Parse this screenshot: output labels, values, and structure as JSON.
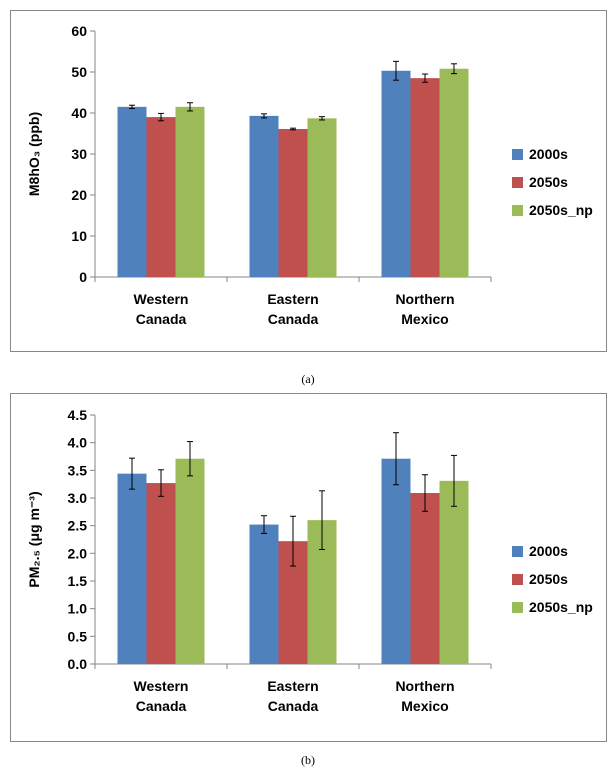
{
  "chart_data": [
    {
      "type": "bar",
      "ylabel": "M8hO₃ (ppb)",
      "caption": "(a)",
      "ylim": [
        0,
        60
      ],
      "yticks": [
        "0",
        "10",
        "20",
        "30",
        "40",
        "50",
        "60"
      ],
      "categories": [
        [
          "Western",
          "Canada"
        ],
        [
          "Eastern",
          "Canada"
        ],
        [
          "Northern",
          "Mexico"
        ]
      ],
      "series": [
        {
          "name": "2000s",
          "color": "#4F81BD",
          "values": [
            41.5,
            39.3,
            50.3
          ],
          "errors": [
            0.4,
            0.5,
            2.3
          ]
        },
        {
          "name": "2050s",
          "color": "#C0504D",
          "values": [
            39.0,
            36.1,
            48.5
          ],
          "errors": [
            0.9,
            0.2,
            1.0
          ]
        },
        {
          "name": "2050s_np",
          "color": "#9BBB59",
          "values": [
            41.5,
            38.7,
            50.8
          ],
          "errors": [
            1.0,
            0.4,
            1.2
          ]
        }
      ],
      "legend_position": "right",
      "grid": false
    },
    {
      "type": "bar",
      "ylabel": "PM₂.₅ (μg m⁻³)",
      "caption": "(b)",
      "ylim": [
        0,
        4.5
      ],
      "yticks": [
        "0.0",
        "0.5",
        "1.0",
        "1.5",
        "2.0",
        "2.5",
        "3.0",
        "3.5",
        "4.0",
        "4.5"
      ],
      "categories": [
        [
          "Western",
          "Canada"
        ],
        [
          "Eastern",
          "Canada"
        ],
        [
          "Northern",
          "Mexico"
        ]
      ],
      "series": [
        {
          "name": "2000s",
          "color": "#4F81BD",
          "values": [
            3.44,
            2.52,
            3.71
          ],
          "errors": [
            0.28,
            0.16,
            0.47
          ]
        },
        {
          "name": "2050s",
          "color": "#C0504D",
          "values": [
            3.27,
            2.22,
            3.09
          ],
          "errors": [
            0.24,
            0.45,
            0.33
          ]
        },
        {
          "name": "2050s_np",
          "color": "#9BBB59",
          "values": [
            3.71,
            2.6,
            3.31
          ],
          "errors": [
            0.31,
            0.53,
            0.46
          ]
        }
      ],
      "legend_position": "right",
      "grid": false
    }
  ]
}
